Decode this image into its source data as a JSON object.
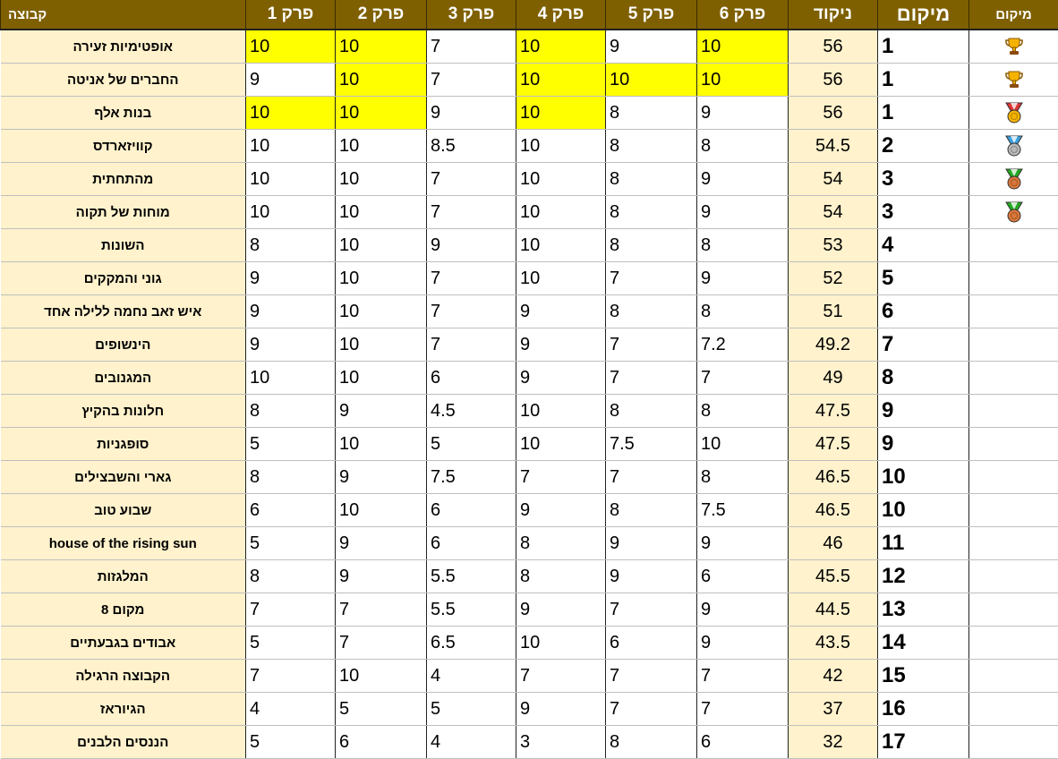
{
  "headers": {
    "icon": "מיקום",
    "place": "מיקום",
    "score": "ניקוד",
    "p6": "פרק 6",
    "p5": "פרק 5",
    "p4": "פרק 4",
    "p3": "פרק 3",
    "p2": "פרק 2",
    "p1": "פרק 1",
    "name": "קבוצה"
  },
  "colors": {
    "header_bg": "#7F6000",
    "name_bg": "#FFF2CC",
    "highlight": "#FFFF00"
  },
  "rows": [
    {
      "icon": "trophy-icon",
      "place": "1",
      "score": "56",
      "p6": "10",
      "p5": "9",
      "p4": "10",
      "p3": "7",
      "p2": "10",
      "p1": "10",
      "name": "אופטימיות זעירה",
      "highlight": [
        "p1",
        "p2",
        "p4",
        "p6"
      ]
    },
    {
      "icon": "trophy-icon",
      "place": "1",
      "score": "56",
      "p6": "10",
      "p5": "10",
      "p4": "10",
      "p3": "7",
      "p2": "10",
      "p1": "9",
      "name": "החברים של אניטה",
      "highlight": [
        "p2",
        "p4",
        "p5",
        "p6"
      ]
    },
    {
      "icon": "gold-medal-icon",
      "place": "1",
      "score": "56",
      "p6": "9",
      "p5": "8",
      "p4": "10",
      "p3": "9",
      "p2": "10",
      "p1": "10",
      "name": "בנות אלף",
      "highlight": [
        "p1",
        "p2",
        "p4"
      ]
    },
    {
      "icon": "silver-medal-icon",
      "place": "2",
      "score": "54.5",
      "p6": "8",
      "p5": "8",
      "p4": "10",
      "p3": "8.5",
      "p2": "10",
      "p1": "10",
      "name": "קוויזארדס",
      "highlight": []
    },
    {
      "icon": "bronze-medal-icon",
      "place": "3",
      "score": "54",
      "p6": "9",
      "p5": "8",
      "p4": "10",
      "p3": "7",
      "p2": "10",
      "p1": "10",
      "name": "מהתחתית",
      "highlight": []
    },
    {
      "icon": "bronze-medal-icon",
      "place": "3",
      "score": "54",
      "p6": "9",
      "p5": "8",
      "p4": "10",
      "p3": "7",
      "p2": "10",
      "p1": "10",
      "name": "מוחות של תקוה",
      "highlight": []
    },
    {
      "icon": "",
      "place": "4",
      "score": "53",
      "p6": "8",
      "p5": "8",
      "p4": "10",
      "p3": "9",
      "p2": "10",
      "p1": "8",
      "name": "השונות",
      "highlight": []
    },
    {
      "icon": "",
      "place": "5",
      "score": "52",
      "p6": "9",
      "p5": "7",
      "p4": "10",
      "p3": "7",
      "p2": "10",
      "p1": "9",
      "name": "גוני והמקקים",
      "highlight": []
    },
    {
      "icon": "",
      "place": "6",
      "score": "51",
      "p6": "8",
      "p5": "8",
      "p4": "9",
      "p3": "7",
      "p2": "10",
      "p1": "9",
      "name": "איש זאב נחמה ללילה אחד",
      "highlight": []
    },
    {
      "icon": "",
      "place": "7",
      "score": "49.2",
      "p6": "7.2",
      "p5": "7",
      "p4": "9",
      "p3": "7",
      "p2": "10",
      "p1": "9",
      "name": "הינשופים",
      "highlight": []
    },
    {
      "icon": "",
      "place": "8",
      "score": "49",
      "p6": "7",
      "p5": "7",
      "p4": "9",
      "p3": "6",
      "p2": "10",
      "p1": "10",
      "name": "המגנובים",
      "highlight": []
    },
    {
      "icon": "",
      "place": "9",
      "score": "47.5",
      "p6": "8",
      "p5": "8",
      "p4": "10",
      "p3": "4.5",
      "p2": "9",
      "p1": "8",
      "name": "חלונות בהקיץ",
      "highlight": []
    },
    {
      "icon": "",
      "place": "9",
      "score": "47.5",
      "p6": "10",
      "p5": "7.5",
      "p4": "10",
      "p3": "5",
      "p2": "10",
      "p1": "5",
      "name": "סופגניות",
      "highlight": []
    },
    {
      "icon": "",
      "place": "10",
      "score": "46.5",
      "p6": "8",
      "p5": "7",
      "p4": "7",
      "p3": "7.5",
      "p2": "9",
      "p1": "8",
      "name": "גארי והשבצילים",
      "highlight": []
    },
    {
      "icon": "",
      "place": "10",
      "score": "46.5",
      "p6": "7.5",
      "p5": "8",
      "p4": "9",
      "p3": "6",
      "p2": "10",
      "p1": "6",
      "name": "שבוע טוב",
      "highlight": []
    },
    {
      "icon": "",
      "place": "11",
      "score": "46",
      "p6": "9",
      "p5": "9",
      "p4": "8",
      "p3": "6",
      "p2": "9",
      "p1": "5",
      "name": "house of the rising sun",
      "highlight": []
    },
    {
      "icon": "",
      "place": "12",
      "score": "45.5",
      "p6": "6",
      "p5": "9",
      "p4": "8",
      "p3": "5.5",
      "p2": "9",
      "p1": "8",
      "name": "המלגזות",
      "highlight": []
    },
    {
      "icon": "",
      "place": "13",
      "score": "44.5",
      "p6": "9",
      "p5": "7",
      "p4": "9",
      "p3": "5.5",
      "p2": "7",
      "p1": "7",
      "name": "מקום 8",
      "highlight": []
    },
    {
      "icon": "",
      "place": "14",
      "score": "43.5",
      "p6": "9",
      "p5": "6",
      "p4": "10",
      "p3": "6.5",
      "p2": "7",
      "p1": "5",
      "name": "אבודים בגבעתיים",
      "highlight": []
    },
    {
      "icon": "",
      "place": "15",
      "score": "42",
      "p6": "7",
      "p5": "7",
      "p4": "7",
      "p3": "4",
      "p2": "10",
      "p1": "7",
      "name": "הקבוצה הרגילה",
      "highlight": []
    },
    {
      "icon": "",
      "place": "16",
      "score": "37",
      "p6": "7",
      "p5": "7",
      "p4": "9",
      "p3": "5",
      "p2": "5",
      "p1": "4",
      "name": "הגיוראז",
      "highlight": []
    },
    {
      "icon": "",
      "place": "17",
      "score": "32",
      "p6": "6",
      "p5": "8",
      "p4": "3",
      "p3": "4",
      "p2": "6",
      "p1": "5",
      "name": "הננסים הלבנים",
      "highlight": []
    }
  ]
}
